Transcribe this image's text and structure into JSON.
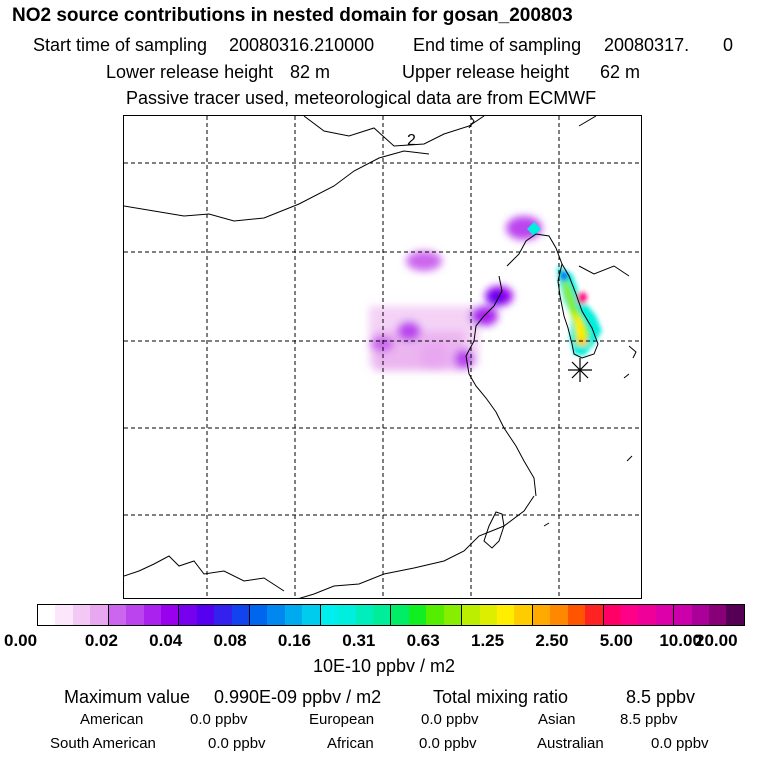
{
  "header": {
    "title": "NO2 source contributions in nested domain for gosan_200803",
    "start_label": "Start time of sampling",
    "start_value": "20080316.210000",
    "end_label": "End time of sampling",
    "end_value": "20080317.",
    "end_suffix": "0",
    "lower_label": "Lower release height",
    "lower_value": "82 m",
    "upper_label": "Upper release height",
    "upper_value": "62 m",
    "note": "Passive tracer used, meteorological data are from ECMWF"
  },
  "map": {
    "contour_label": "2",
    "receptor_marker": "asterisk"
  },
  "colorbar": {
    "colors": [
      "#ffffff",
      "#fbe6fb",
      "#f4c8f5",
      "#e8a8f0",
      "#cc66ee",
      "#bb44ee",
      "#aa22ee",
      "#9900ee",
      "#7700ee",
      "#5500ee",
      "#3322ee",
      "#1144ee",
      "#0066ee",
      "#0088ee",
      "#00aaee",
      "#00ccee",
      "#00eeee",
      "#00eedd",
      "#00eebb",
      "#00ee99",
      "#00ee66",
      "#11ee22",
      "#55ee00",
      "#88ee00",
      "#bbee00",
      "#ddee00",
      "#ffee00",
      "#ffcc00",
      "#ffaa00",
      "#ff8800",
      "#ff5500",
      "#ff2222",
      "#ff0066",
      "#ff0088",
      "#ee0099",
      "#dd00aa",
      "#cc00aa",
      "#aa0099",
      "#880077",
      "#550055"
    ],
    "tick_labels": [
      "0.00",
      "0.02",
      "0.04",
      "0.08",
      "0.16",
      "0.31",
      "0.63",
      "1.25",
      "2.50",
      "5.00",
      "10.00",
      "20.00"
    ],
    "unit": "10E-10 ppbv / m2"
  },
  "summary": {
    "max_label": "Maximum value",
    "max_value": "0.990E-09 ppbv / m2",
    "total_label": "Total mixing ratio",
    "total_value": "8.5 ppbv",
    "regions": [
      {
        "name": "American",
        "value": "0.0 ppbv"
      },
      {
        "name": "European",
        "value": "0.0 ppbv"
      },
      {
        "name": "Asian",
        "value": "8.5 ppbv"
      },
      {
        "name": "South American",
        "value": "0.0 ppbv"
      },
      {
        "name": "African",
        "value": "0.0 ppbv"
      },
      {
        "name": "Australian",
        "value": "0.0 ppbv"
      }
    ]
  }
}
